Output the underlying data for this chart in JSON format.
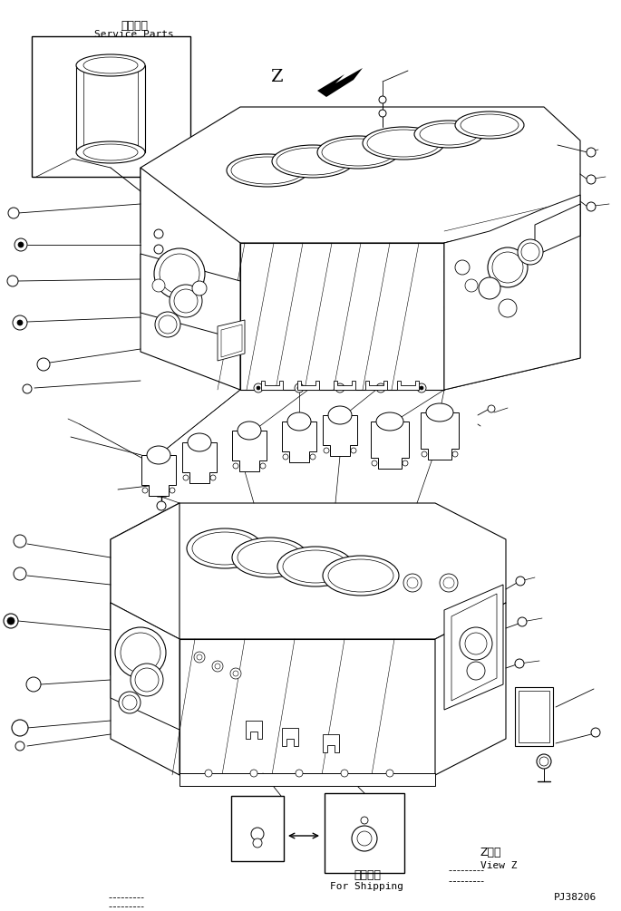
{
  "bg_color": "#ffffff",
  "line_color": "#000000",
  "fig_width": 6.85,
  "fig_height": 10.05,
  "dpi": 100,
  "service_parts_text_jp": "補給専用",
  "service_parts_text_en": "Service Parts",
  "view_z_text_jp": "Z　視",
  "view_z_text_en": "View Z",
  "for_shipping_text_jp": "運携部品",
  "for_shipping_text_en": "For Shipping",
  "part_number": "PJ38206"
}
